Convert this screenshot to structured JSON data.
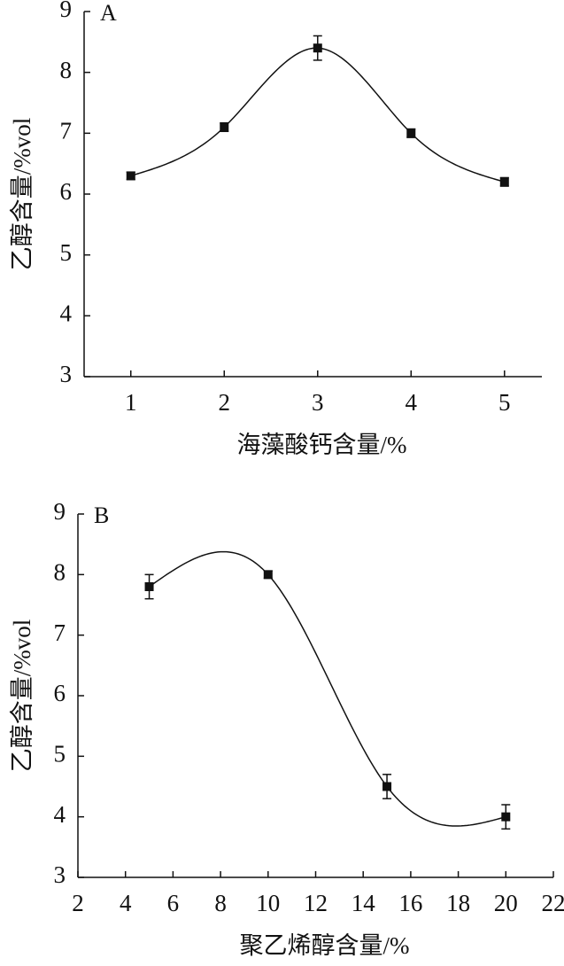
{
  "chart_data": [
    {
      "type": "line",
      "panel": "A",
      "x_label": "海藻酸钙含量/%",
      "y_label": "乙醇含量/%vol",
      "x": [
        1,
        2,
        3,
        4,
        5
      ],
      "series": [
        {
          "values": [
            6.3,
            7.1,
            8.4,
            7.0,
            6.2
          ],
          "errors": [
            0.06,
            0.07,
            0.2,
            0.07,
            0.07
          ],
          "color": "#111111"
        }
      ],
      "xlim": [
        0.5,
        5.4
      ],
      "xticks": [
        1,
        2,
        3,
        4,
        5
      ],
      "ylim": [
        3,
        9
      ],
      "yticks": [
        3,
        4,
        5,
        6,
        7,
        8,
        9
      ]
    },
    {
      "type": "line",
      "panel": "B",
      "x_label": "聚乙烯醇含量/%",
      "y_label": "乙醇含量/%vol",
      "x": [
        5,
        10,
        15,
        20
      ],
      "series": [
        {
          "values": [
            7.8,
            8.0,
            4.5,
            4.0
          ],
          "errors": [
            0.2,
            0.06,
            0.2,
            0.2
          ],
          "color": "#111111"
        }
      ],
      "xlim": [
        2,
        22
      ],
      "xticks": [
        2,
        4,
        6,
        8,
        10,
        12,
        14,
        16,
        18,
        20,
        22
      ],
      "ylim": [
        3,
        9
      ],
      "yticks": [
        3,
        4,
        5,
        6,
        7,
        8,
        9
      ]
    }
  ]
}
